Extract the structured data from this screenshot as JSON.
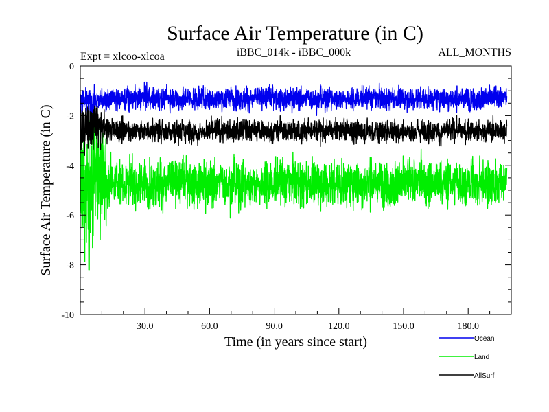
{
  "chart_data": {
    "type": "line",
    "title": "Surface Air Temperature (in C)",
    "subtitle_left": "Expt = xlcoo-xlcoa",
    "subtitle_center": "iBBC_014k - iBBC_000k",
    "subtitle_right": "ALL_MONTHS",
    "xlabel": "Time (in years since start)",
    "ylabel": "Surface Air Temperature (in C)",
    "xlim": [
      0,
      200
    ],
    "ylim": [
      -10,
      0
    ],
    "x_ticks": [
      30,
      60,
      90,
      120,
      150,
      180
    ],
    "x_tick_labels": [
      "30.0",
      "60.0",
      "90.0",
      "120.0",
      "150.0",
      "180.0"
    ],
    "y_ticks": [
      0,
      -2,
      -4,
      -6,
      -8,
      -10
    ],
    "y_tick_labels": [
      "0",
      "-2",
      "-4",
      "-6",
      "-8",
      "-10"
    ],
    "grid": false,
    "legend_position": "bottom-right",
    "series": [
      {
        "name": "Ocean",
        "color": "#0000ee",
        "mean": -1.3,
        "spread": 0.22,
        "initial_mean": -1.4,
        "initial_spread": 0.25,
        "range": [
          -2.0,
          -0.65
        ]
      },
      {
        "name": "AllSurf",
        "color": "#000000",
        "mean": -2.6,
        "spread": 0.22,
        "initial_mean": -2.4,
        "initial_spread": 0.5,
        "range": [
          -3.6,
          -1.6
        ]
      },
      {
        "name": "Land",
        "color": "#00ee00",
        "mean": -4.7,
        "spread": 0.45,
        "initial_mean": -4.8,
        "initial_spread": 1.4,
        "range": [
          -8.2,
          -1.6
        ]
      }
    ]
  }
}
